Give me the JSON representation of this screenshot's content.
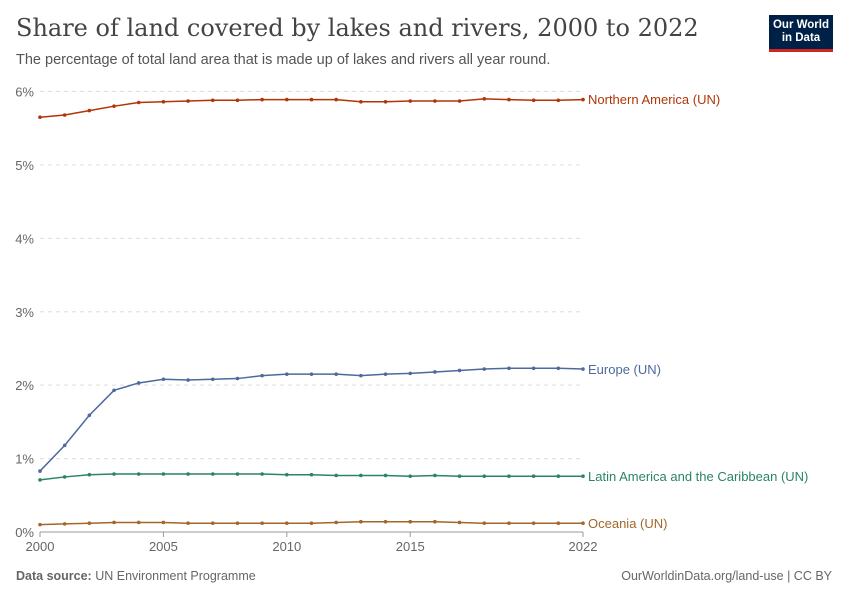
{
  "header": {
    "title": "Share of land covered by lakes and rivers, 2000 to 2022",
    "subtitle": "The percentage of total land area that is made up of lakes and rivers all year round.",
    "logo": "Our World in Data"
  },
  "footer": {
    "source_label": "Data source:",
    "source": "UN Environment Programme",
    "credit": "OurWorldinData.org/land-use | CC BY"
  },
  "chart_data": {
    "type": "line",
    "title": "Share of land covered by lakes and rivers, 2000 to 2022",
    "xlabel": "",
    "ylabel": "",
    "xlim": [
      2000,
      2022
    ],
    "ylim": [
      0,
      6
    ],
    "grid": "horizontal dashed",
    "legend": "line-end labels",
    "xticks": [
      "2000",
      "2005",
      "2010",
      "2015",
      "2022"
    ],
    "xtick_values": [
      2000,
      2005,
      2010,
      2015,
      2022
    ],
    "yticks": [
      "0%",
      "1%",
      "2%",
      "3%",
      "4%",
      "5%",
      "6%"
    ],
    "ytick_values": [
      0,
      1,
      2,
      3,
      4,
      5,
      6
    ],
    "x": [
      2000,
      2001,
      2002,
      2003,
      2004,
      2005,
      2006,
      2007,
      2008,
      2009,
      2010,
      2011,
      2012,
      2013,
      2014,
      2015,
      2016,
      2017,
      2018,
      2019,
      2020,
      2021,
      2022
    ],
    "series": [
      {
        "name": "Northern America (UN)",
        "color": "#b13507",
        "values": [
          5.65,
          5.68,
          5.74,
          5.8,
          5.85,
          5.86,
          5.87,
          5.88,
          5.88,
          5.89,
          5.89,
          5.89,
          5.89,
          5.86,
          5.86,
          5.87,
          5.87,
          5.87,
          5.9,
          5.89,
          5.88,
          5.88,
          5.89
        ]
      },
      {
        "name": "Europe (UN)",
        "color": "#4c6a9c",
        "values": [
          0.83,
          1.18,
          1.59,
          1.93,
          2.03,
          2.08,
          2.07,
          2.08,
          2.09,
          2.13,
          2.15,
          2.15,
          2.15,
          2.13,
          2.15,
          2.16,
          2.18,
          2.2,
          2.22,
          2.23,
          2.23,
          2.23,
          2.22
        ]
      },
      {
        "name": "Latin America and the Caribbean (UN)",
        "color": "#2c8465",
        "values": [
          0.71,
          0.75,
          0.78,
          0.79,
          0.79,
          0.79,
          0.79,
          0.79,
          0.79,
          0.79,
          0.78,
          0.78,
          0.77,
          0.77,
          0.77,
          0.76,
          0.77,
          0.76,
          0.76,
          0.76,
          0.76,
          0.76,
          0.76
        ]
      },
      {
        "name": "Oceania (UN)",
        "color": "#a2672a",
        "values": [
          0.1,
          0.11,
          0.12,
          0.13,
          0.13,
          0.13,
          0.12,
          0.12,
          0.12,
          0.12,
          0.12,
          0.12,
          0.13,
          0.14,
          0.14,
          0.14,
          0.14,
          0.13,
          0.12,
          0.12,
          0.12,
          0.12,
          0.12
        ]
      }
    ]
  }
}
